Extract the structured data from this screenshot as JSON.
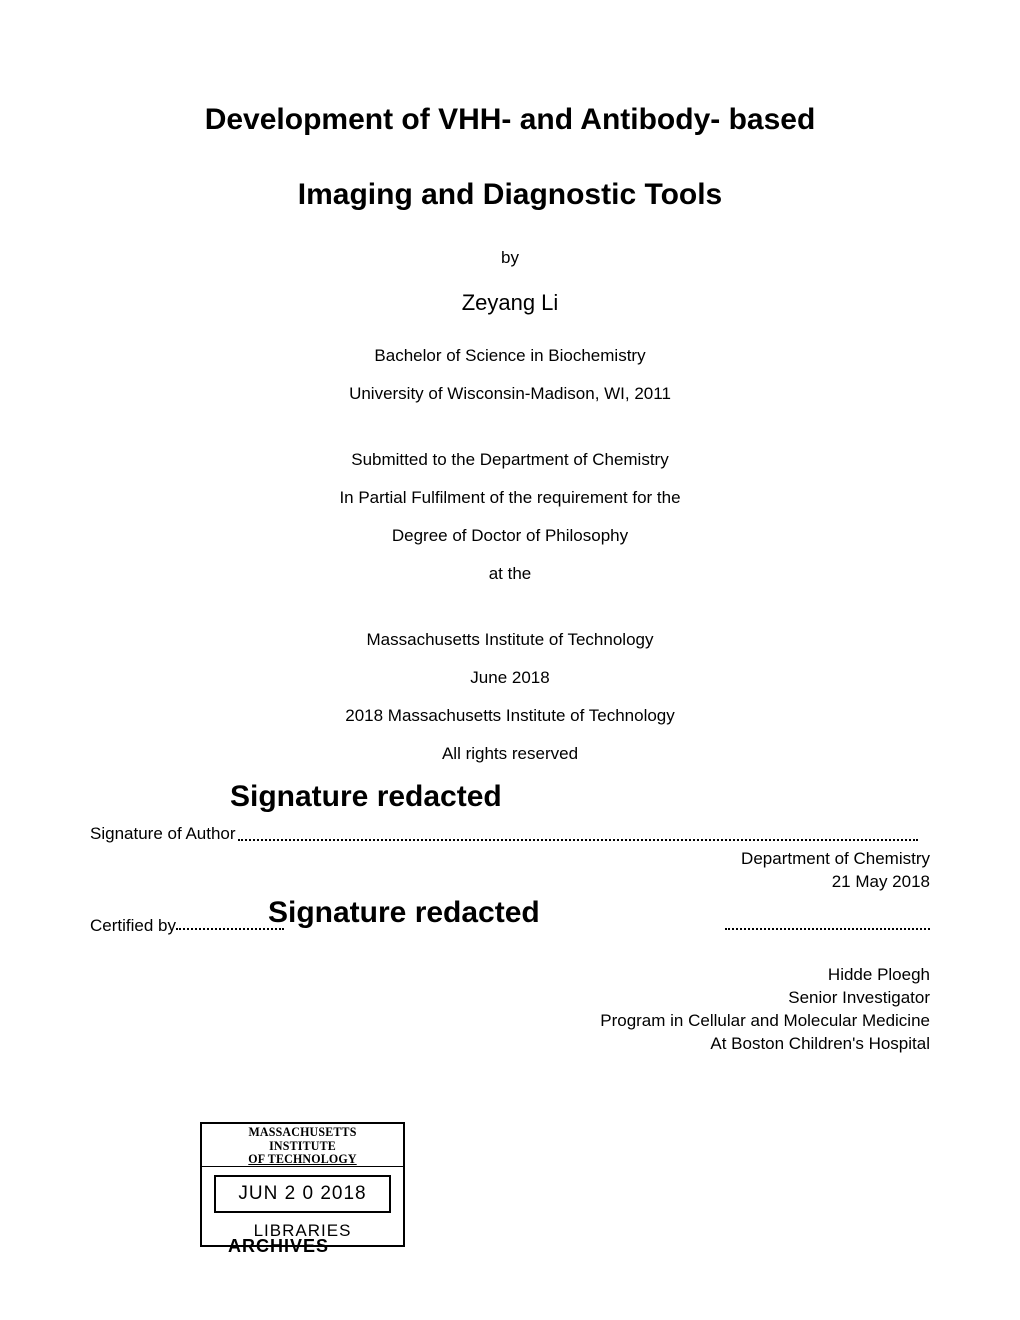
{
  "title_line1": "Development of VHH- and Antibody- based",
  "title_line2": "Imaging and Diagnostic Tools",
  "by": "by",
  "author": "Zeyang Li",
  "degree_prev": "Bachelor of Science in Biochemistry",
  "prev_school": "University of Wisconsin-Madison, WI, 2011",
  "submitted": "Submitted to the Department of Chemistry",
  "partial": "In Partial Fulfilment of the requirement for the",
  "degree": "Degree of Doctor of Philosophy",
  "at_the": "at the",
  "institute": "Massachusetts Institute of Technology",
  "date": "June 2018",
  "copyright": "2018 Massachusetts Institute of Technology",
  "rights": "All rights reserved",
  "sig_redacted": "Signature redacted",
  "sig_author_label": "Signature of Author",
  "dept": "Department of Chemistry",
  "sig_date": "21 May 2018",
  "certified_by": "Certified by",
  "advisor_name": "Hidde Ploegh",
  "advisor_title": "Senior Investigator",
  "advisor_program": "Program in Cellular and Molecular Medicine",
  "advisor_at": "At Boston Children's Hospital",
  "stamp_line1": "MASSACHUSETTS INSTITUTE",
  "stamp_line2": "OF TECHNOLOGY",
  "stamp_date": "JUN 2 0 2018",
  "stamp_lib": "LIBRARIES",
  "stamp_arch": "ARCHIVES"
}
